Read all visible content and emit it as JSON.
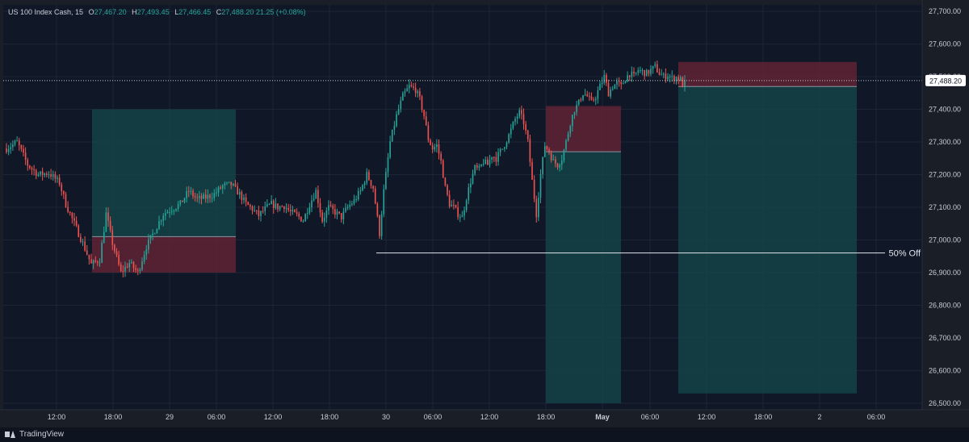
{
  "legend": {
    "symbol": "US 100 Index Cash, 15",
    "open_key": "O",
    "open": "27,467.20",
    "high_key": "H",
    "high": "27,493.45",
    "low_key": "L",
    "low": "27,466.45",
    "close_key": "C",
    "close": "27,488.20",
    "change": "21.25 (+0.08%)"
  },
  "brand": "TradingView",
  "colors": {
    "bg": "#101828",
    "grid": "#1e2535",
    "up": "#26a69a",
    "down": "#ef5350",
    "target_zone": "#13484a",
    "stop_zone": "#6a2436",
    "text": "#c8ccd4"
  },
  "chart_data": {
    "type": "candlestick",
    "interval_minutes": 15,
    "ylim": [
      26480,
      27720
    ],
    "y_ticks": [
      26500,
      26600,
      26700,
      26800,
      26900,
      27000,
      27100,
      27200,
      27300,
      27400,
      27500,
      27600,
      27700
    ],
    "y_tick_labels": [
      "26,500.00",
      "26,600.00",
      "26,700.00",
      "26,800.00",
      "26,900.00",
      "27,000.00",
      "27,100.00",
      "27,200.00",
      "27,300.00",
      "27,400.00",
      "27,500.00",
      "27,600.00",
      "27,700.00"
    ],
    "x_ticks": [
      "12:00",
      "18:00",
      "29",
      "06:00",
      "12:00",
      "18:00",
      "30",
      "06:00",
      "12:00",
      "18:00",
      "May",
      "06:00",
      "12:00",
      "18:00",
      "2",
      "06:00"
    ],
    "bold_x_ticks": [
      "May"
    ],
    "current_price": 27488.2,
    "current_price_label": "27,488.20",
    "path": [
      [
        0,
        27280
      ],
      [
        5,
        27300
      ],
      [
        10,
        27230
      ],
      [
        15,
        27200
      ],
      [
        20,
        27205
      ],
      [
        25,
        27175
      ],
      [
        28,
        27110
      ],
      [
        32,
        27050
      ],
      [
        36,
        26990
      ],
      [
        40,
        26925
      ],
      [
        44,
        26940
      ],
      [
        47,
        27080
      ],
      [
        50,
        26990
      ],
      [
        54,
        26900
      ],
      [
        58,
        26930
      ],
      [
        62,
        26900
      ],
      [
        66,
        26980
      ],
      [
        70,
        27030
      ],
      [
        74,
        27080
      ],
      [
        78,
        27095
      ],
      [
        82,
        27110
      ],
      [
        86,
        27150
      ],
      [
        90,
        27125
      ],
      [
        94,
        27130
      ],
      [
        98,
        27140
      ],
      [
        102,
        27165
      ],
      [
        106,
        27170
      ],
      [
        110,
        27140
      ],
      [
        113,
        27110
      ],
      [
        116,
        27095
      ],
      [
        119,
        27075
      ],
      [
        122,
        27095
      ],
      [
        125,
        27110
      ],
      [
        128,
        27100
      ],
      [
        131,
        27105
      ],
      [
        134,
        27085
      ],
      [
        137,
        27075
      ],
      [
        140,
        27060
      ],
      [
        143,
        27110
      ],
      [
        146,
        27150
      ],
      [
        149,
        27060
      ],
      [
        152,
        27100
      ],
      [
        155,
        27085
      ],
      [
        158,
        27070
      ],
      [
        161,
        27100
      ],
      [
        164,
        27120
      ],
      [
        167,
        27150
      ],
      [
        170,
        27200
      ],
      [
        173,
        27160
      ],
      [
        176,
        27020
      ],
      [
        178,
        27150
      ],
      [
        181,
        27300
      ],
      [
        184,
        27380
      ],
      [
        187,
        27440
      ],
      [
        190,
        27470
      ],
      [
        193,
        27460
      ],
      [
        195,
        27430
      ],
      [
        197,
        27380
      ],
      [
        199,
        27310
      ],
      [
        201,
        27280
      ],
      [
        203,
        27290
      ],
      [
        205,
        27240
      ],
      [
        207,
        27160
      ],
      [
        209,
        27110
      ],
      [
        211,
        27100
      ],
      [
        213,
        27080
      ],
      [
        215,
        27070
      ],
      [
        217,
        27130
      ],
      [
        219,
        27180
      ],
      [
        221,
        27220
      ],
      [
        223,
        27215
      ],
      [
        225,
        27240
      ],
      [
        227,
        27230
      ],
      [
        229,
        27260
      ],
      [
        231,
        27250
      ],
      [
        234,
        27280
      ],
      [
        237,
        27320
      ],
      [
        240,
        27370
      ],
      [
        242,
        27390
      ],
      [
        244,
        27360
      ],
      [
        246,
        27300
      ],
      [
        248,
        27180
      ],
      [
        250,
        27080
      ],
      [
        252,
        27200
      ],
      [
        254,
        27290
      ],
      [
        256,
        27270
      ],
      [
        258,
        27240
      ],
      [
        260,
        27230
      ],
      [
        262,
        27250
      ],
      [
        264,
        27300
      ],
      [
        266,
        27360
      ],
      [
        268,
        27400
      ],
      [
        270,
        27420
      ],
      [
        272,
        27450
      ],
      [
        274,
        27440
      ],
      [
        276,
        27420
      ],
      [
        278,
        27440
      ],
      [
        280,
        27470
      ],
      [
        282,
        27500
      ],
      [
        284,
        27450
      ],
      [
        286,
        27470
      ],
      [
        288,
        27480
      ],
      [
        290,
        27470
      ],
      [
        292,
        27495
      ],
      [
        294,
        27510
      ],
      [
        296,
        27500
      ],
      [
        298,
        27520
      ],
      [
        300,
        27515
      ],
      [
        302,
        27510
      ],
      [
        304,
        27520
      ],
      [
        306,
        27530
      ],
      [
        308,
        27510
      ],
      [
        310,
        27500
      ],
      [
        312,
        27505
      ],
      [
        314,
        27495
      ],
      [
        316,
        27498
      ],
      [
        318,
        27490
      ],
      [
        319,
        27475
      ],
      [
        320,
        27488.2
      ]
    ],
    "positions": [
      {
        "type": "long",
        "entry": 27010,
        "target": 27400,
        "stop": 26900,
        "start": "18:00",
        "end": "06:00"
      },
      {
        "type": "short",
        "entry": 27270,
        "target": 26500,
        "stop": 27410,
        "start": "18:00",
        "end": "May"
      },
      {
        "type": "short",
        "entry": 27470,
        "target": 26530,
        "stop": 27545,
        "start": "12:00",
        "end": "2"
      }
    ],
    "levels": [
      {
        "price": 26960,
        "label": "50% Off"
      }
    ]
  }
}
